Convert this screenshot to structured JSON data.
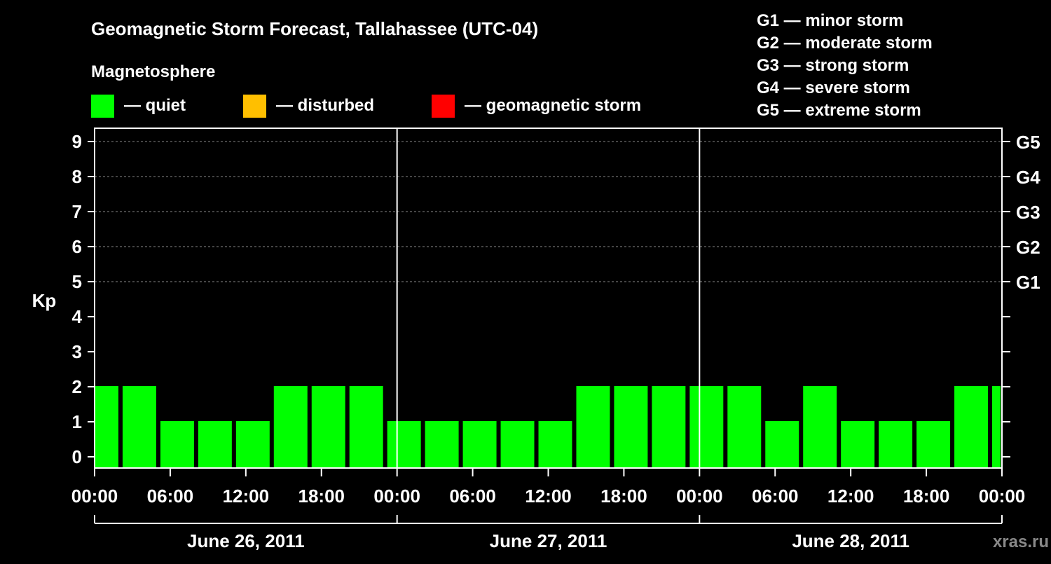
{
  "title": "Geomagnetic Storm Forecast, Tallahassee (UTC-04)",
  "legend": {
    "heading": "Magnetosphere",
    "items": [
      {
        "label": "— quiet",
        "color": "#00ff00"
      },
      {
        "label": "— disturbed",
        "color": "#ffbf00"
      },
      {
        "label": "— geomagnetic storm",
        "color": "#ff0000"
      }
    ]
  },
  "g_scale": [
    "G1 — minor storm",
    "G2 — moderate storm",
    "G3 — strong storm",
    "G4 — severe storm",
    "G5 — extreme storm"
  ],
  "watermark": "xras.ru",
  "chart_data": {
    "type": "bar",
    "ylabel": "Kp",
    "ylim": [
      0,
      9
    ],
    "yticks": [
      "0",
      "1",
      "2",
      "3",
      "4",
      "5",
      "6",
      "7",
      "8",
      "9"
    ],
    "right_ticks": [
      {
        "kp": 5,
        "label": "G1"
      },
      {
        "kp": 6,
        "label": "G2"
      },
      {
        "kp": 7,
        "label": "G3"
      },
      {
        "kp": 8,
        "label": "G4"
      },
      {
        "kp": 9,
        "label": "G5"
      }
    ],
    "xlim_hours": [
      0,
      72
    ],
    "xtick_labels": [
      "00:00",
      "06:00",
      "12:00",
      "18:00",
      "00:00",
      "06:00",
      "12:00",
      "18:00",
      "00:00",
      "06:00",
      "12:00",
      "18:00",
      "00:00"
    ],
    "days": [
      "June 26, 2011",
      "June 27, 2011",
      "June 28, 2011"
    ],
    "grid": "dashed horizontal at Kp 5-9",
    "bars": [
      {
        "start": 0,
        "end": 2,
        "kp": 2,
        "status": "quiet"
      },
      {
        "start": 2,
        "end": 5,
        "kp": 2,
        "status": "quiet"
      },
      {
        "start": 5,
        "end": 8,
        "kp": 1,
        "status": "quiet"
      },
      {
        "start": 8,
        "end": 11,
        "kp": 1,
        "status": "quiet"
      },
      {
        "start": 11,
        "end": 14,
        "kp": 1,
        "status": "quiet"
      },
      {
        "start": 14,
        "end": 17,
        "kp": 2,
        "status": "quiet"
      },
      {
        "start": 17,
        "end": 20,
        "kp": 2,
        "status": "quiet"
      },
      {
        "start": 20,
        "end": 23,
        "kp": 2,
        "status": "quiet"
      },
      {
        "start": 23,
        "end": 26,
        "kp": 1,
        "status": "quiet"
      },
      {
        "start": 26,
        "end": 29,
        "kp": 1,
        "status": "quiet"
      },
      {
        "start": 29,
        "end": 32,
        "kp": 1,
        "status": "quiet"
      },
      {
        "start": 32,
        "end": 35,
        "kp": 1,
        "status": "quiet"
      },
      {
        "start": 35,
        "end": 38,
        "kp": 1,
        "status": "quiet"
      },
      {
        "start": 38,
        "end": 41,
        "kp": 2,
        "status": "quiet"
      },
      {
        "start": 41,
        "end": 44,
        "kp": 2,
        "status": "quiet"
      },
      {
        "start": 44,
        "end": 47,
        "kp": 2,
        "status": "quiet"
      },
      {
        "start": 47,
        "end": 50,
        "kp": 2,
        "status": "quiet"
      },
      {
        "start": 50,
        "end": 53,
        "kp": 2,
        "status": "quiet"
      },
      {
        "start": 53,
        "end": 56,
        "kp": 1,
        "status": "quiet"
      },
      {
        "start": 56,
        "end": 59,
        "kp": 2,
        "status": "quiet"
      },
      {
        "start": 59,
        "end": 62,
        "kp": 1,
        "status": "quiet"
      },
      {
        "start": 62,
        "end": 65,
        "kp": 1,
        "status": "quiet"
      },
      {
        "start": 65,
        "end": 68,
        "kp": 1,
        "status": "quiet"
      },
      {
        "start": 68,
        "end": 71,
        "kp": 2,
        "status": "quiet"
      },
      {
        "start": 71,
        "end": 72,
        "kp": 2,
        "status": "quiet"
      }
    ]
  }
}
